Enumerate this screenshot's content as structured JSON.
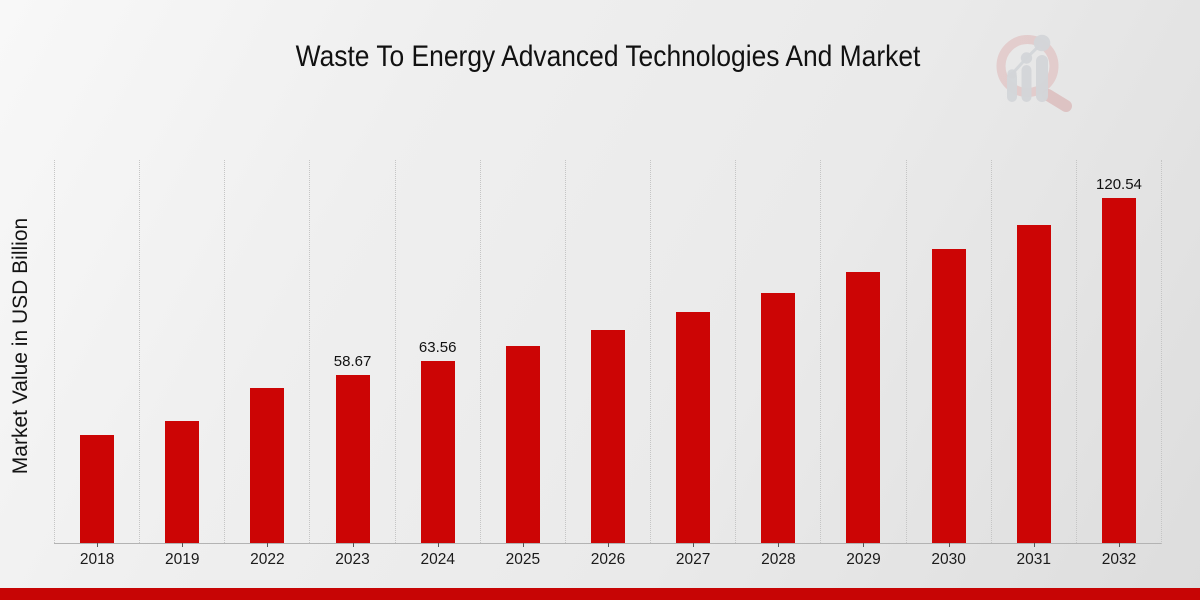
{
  "page": {
    "title": "Waste To Energy Advanced Technologies And Market"
  },
  "chart_data": {
    "type": "bar",
    "title": "Waste To Energy Advanced Technologies And Market",
    "xlabel": "",
    "ylabel": "Market Value in USD Billion",
    "units": "USD Billion",
    "categories": [
      "2018",
      "2019",
      "2022",
      "2023",
      "2024",
      "2025",
      "2026",
      "2027",
      "2028",
      "2029",
      "2030",
      "2031",
      "2032"
    ],
    "values": [
      37.6,
      42.6,
      54.2,
      58.67,
      63.56,
      68.85,
      74.59,
      80.8,
      87.53,
      94.82,
      102.72,
      111.27,
      120.54
    ],
    "data_labels": [
      "",
      "",
      "",
      "58.67",
      "63.56",
      "",
      "",
      "",
      "",
      "",
      "",
      "",
      "120.54"
    ],
    "ylim": [
      0,
      134
    ],
    "legend": "none",
    "grid": "vertical dotted gridlines between category bands",
    "bar_color": "#cc0505",
    "gridline_color": "#c5c5c5",
    "axis_color": "#b3b3b3",
    "label_color": "#111111"
  },
  "branding": {
    "logo_icon": "magnifier-bar-chart-watermark",
    "logo_ring_color": "#dcadad",
    "logo_bar_color": "#c3c7cd",
    "footer_bar_color": "#c70505"
  }
}
